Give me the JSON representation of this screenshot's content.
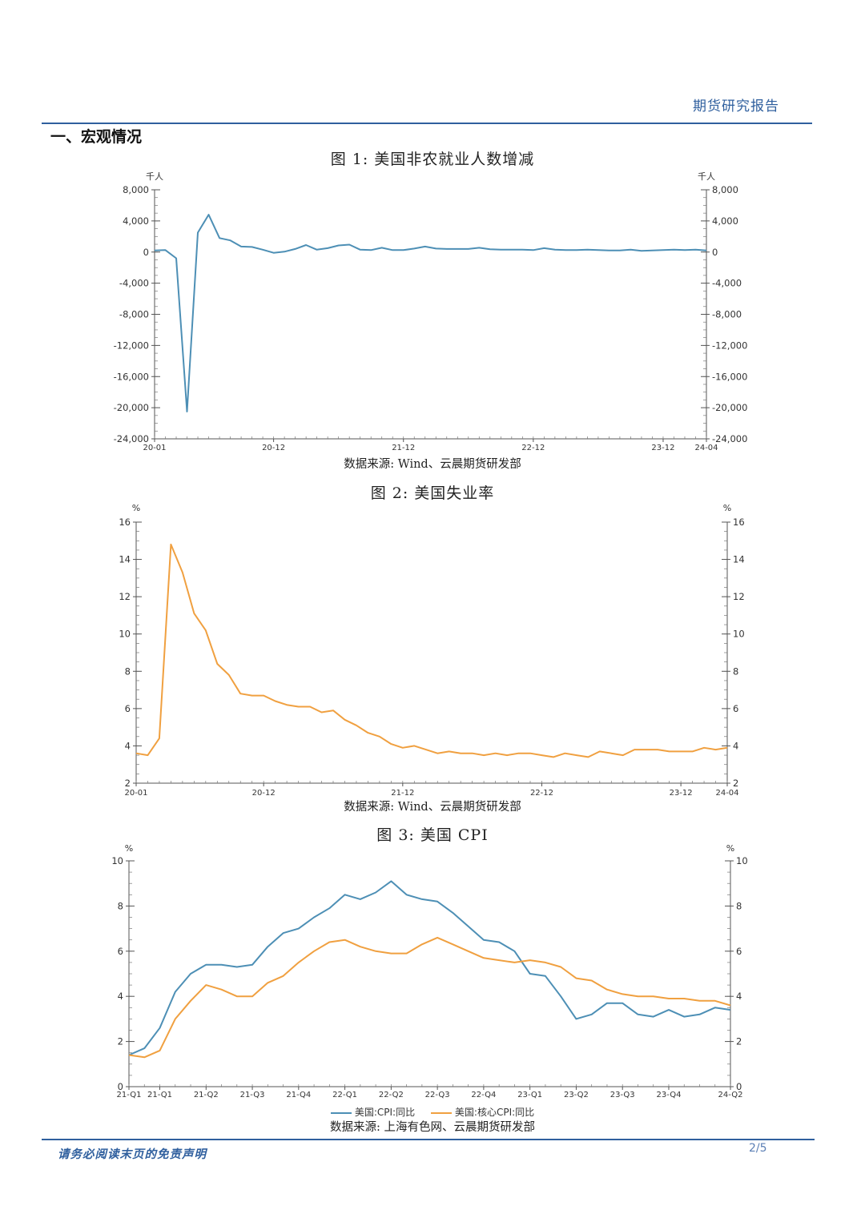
{
  "header": {
    "title": "期货研究报告",
    "page": "2/5"
  },
  "section": {
    "title": "一、宏观情况"
  },
  "footer": {
    "disclaimer": "请务必阅读末页的免责声明"
  },
  "colors": {
    "blue": "#4d8fb5",
    "orange": "#f0a040",
    "accent": "#2f5f9e"
  },
  "chart_data": [
    {
      "type": "line",
      "title": "图 1:  美国非农就业人数增减",
      "source": "数据来源: Wind、云晨期货研发部",
      "unit_left": "千人",
      "unit_right": "千人",
      "ylim": [
        -24000,
        8000
      ],
      "yticks": [
        8000,
        4000,
        0,
        -4000,
        -8000,
        -12000,
        -16000,
        -20000,
        -24000
      ],
      "ytick_labels": [
        "8,000",
        "4,000",
        "0",
        "-4,000",
        "-8,000",
        "-12,000",
        "-16,000",
        "-20,000",
        "-24,000"
      ],
      "xlim": [
        0,
        51
      ],
      "xticks": [
        {
          "x": 0,
          "label": "20-01"
        },
        {
          "x": 11,
          "label": "20-12"
        },
        {
          "x": 23,
          "label": "21-12"
        },
        {
          "x": 35,
          "label": "22-12"
        },
        {
          "x": 47,
          "label": "23-12"
        },
        {
          "x": 51,
          "label": "24-04"
        }
      ],
      "series": [
        {
          "values": [
            200,
            250,
            -800,
            -20500,
            2500,
            4800,
            1800,
            1500,
            700,
            650,
            300,
            -100,
            50,
            400,
            900,
            300,
            500,
            850,
            950,
            300,
            250,
            550,
            250,
            250,
            450,
            700,
            450,
            400,
            400,
            400,
            550,
            350,
            300,
            300,
            300,
            250,
            500,
            300,
            250,
            250,
            300,
            250,
            200,
            200,
            300,
            150,
            200,
            250,
            300,
            250,
            300,
            200
          ],
          "color": "#4d8fb5"
        }
      ]
    },
    {
      "type": "line",
      "title": "图 2:  美国失业率",
      "source": "数据来源: Wind、云晨期货研发部",
      "unit_left": "%",
      "unit_right": "%",
      "ylim": [
        2,
        16
      ],
      "yticks": [
        2,
        4,
        6,
        8,
        10,
        12,
        14,
        16
      ],
      "ytick_labels": [
        "2",
        "4",
        "6",
        "8",
        "10",
        "12",
        "14",
        "16"
      ],
      "xlim": [
        0,
        51
      ],
      "xticks": [
        {
          "x": 0,
          "label": "20-01"
        },
        {
          "x": 11,
          "label": "20-12"
        },
        {
          "x": 23,
          "label": "21-12"
        },
        {
          "x": 35,
          "label": "22-12"
        },
        {
          "x": 47,
          "label": "23-12"
        },
        {
          "x": 51,
          "label": "24-04"
        }
      ],
      "series": [
        {
          "values": [
            3.6,
            3.5,
            4.4,
            14.8,
            13.3,
            11.1,
            10.2,
            8.4,
            7.8,
            6.8,
            6.7,
            6.7,
            6.4,
            6.2,
            6.1,
            6.1,
            5.8,
            5.9,
            5.4,
            5.1,
            4.7,
            4.5,
            4.1,
            3.9,
            4.0,
            3.8,
            3.6,
            3.7,
            3.6,
            3.6,
            3.5,
            3.6,
            3.5,
            3.6,
            3.6,
            3.5,
            3.4,
            3.6,
            3.5,
            3.4,
            3.7,
            3.6,
            3.5,
            3.8,
            3.8,
            3.8,
            3.7,
            3.7,
            3.7,
            3.9,
            3.8,
            3.9
          ],
          "color": "#f0a040"
        }
      ]
    },
    {
      "type": "line",
      "title": "图 3:  美国 CPI",
      "source": "数据来源: 上海有色网、云晨期货研发部",
      "unit_left": "%",
      "unit_right": "%",
      "ylim": [
        0,
        10
      ],
      "yticks": [
        0,
        2,
        4,
        6,
        8,
        10
      ],
      "ytick_labels": [
        "0",
        "2",
        "4",
        "6",
        "8",
        "10"
      ],
      "xlim": [
        0,
        39
      ],
      "xticks": [
        {
          "x": 0,
          "label": "21-Q1"
        },
        {
          "x": 2,
          "label": "21-Q1"
        },
        {
          "x": 5,
          "label": "21-Q2"
        },
        {
          "x": 8,
          "label": "21-Q3"
        },
        {
          "x": 11,
          "label": "21-Q4"
        },
        {
          "x": 14,
          "label": "22-Q1"
        },
        {
          "x": 17,
          "label": "22-Q2"
        },
        {
          "x": 20,
          "label": "22-Q3"
        },
        {
          "x": 23,
          "label": "22-Q4"
        },
        {
          "x": 26,
          "label": "23-Q1"
        },
        {
          "x": 29,
          "label": "23-Q2"
        },
        {
          "x": 32,
          "label": "23-Q3"
        },
        {
          "x": 35,
          "label": "23-Q4"
        },
        {
          "x": 39,
          "label": "24-Q2"
        }
      ],
      "series": [
        {
          "name": "美国:CPI:同比",
          "color": "#4d8fb5",
          "values": [
            1.4,
            1.7,
            2.6,
            4.2,
            5.0,
            5.4,
            5.4,
            5.3,
            5.4,
            6.2,
            6.8,
            7.0,
            7.5,
            7.9,
            8.5,
            8.3,
            8.6,
            9.1,
            8.5,
            8.3,
            8.2,
            7.7,
            7.1,
            6.5,
            6.4,
            6.0,
            5.0,
            4.9,
            4.0,
            3.0,
            3.2,
            3.7,
            3.7,
            3.2,
            3.1,
            3.4,
            3.1,
            3.2,
            3.5,
            3.4
          ]
        },
        {
          "name": "美国:核心CPI:同比",
          "color": "#f0a040",
          "values": [
            1.4,
            1.3,
            1.6,
            3.0,
            3.8,
            4.5,
            4.3,
            4.0,
            4.0,
            4.6,
            4.9,
            5.5,
            6.0,
            6.4,
            6.5,
            6.2,
            6.0,
            5.9,
            5.9,
            6.3,
            6.6,
            6.3,
            6.0,
            5.7,
            5.6,
            5.5,
            5.6,
            5.5,
            5.3,
            4.8,
            4.7,
            4.3,
            4.1,
            4.0,
            4.0,
            3.9,
            3.9,
            3.8,
            3.8,
            3.6
          ]
        }
      ]
    }
  ]
}
